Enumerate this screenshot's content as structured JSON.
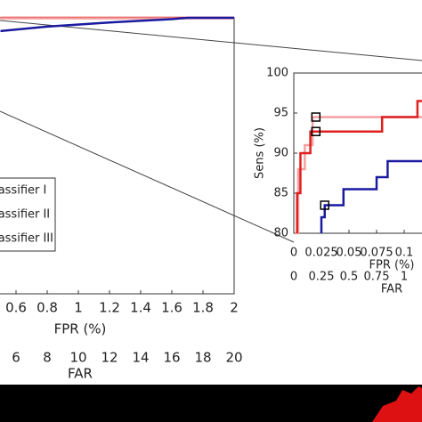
{
  "chart_data": [
    {
      "type": "line",
      "xlabel": "FPR (%)",
      "x2label": "FAR",
      "xlim": [
        0,
        2
      ],
      "xticks": [
        0.6,
        0.8,
        1,
        1.2,
        1.4,
        1.6,
        1.8,
        2
      ],
      "x2lim": [
        0,
        20
      ],
      "x2ticks": [
        6,
        8,
        10,
        12,
        14,
        16,
        18,
        20
      ],
      "ylim": [
        0,
        100
      ],
      "series": [
        {
          "name": "Classifier I",
          "color": "#e02020",
          "x": [
            0.5,
            2
          ],
          "values": [
            100,
            100
          ]
        },
        {
          "name": "Classifier II",
          "color": "#f4a0a0",
          "x": [
            0.5,
            2
          ],
          "values": [
            99.8,
            99.8
          ]
        },
        {
          "name": "Classifier III",
          "color": "#1a1aa0",
          "x": [
            0.5,
            0.8,
            1.2,
            1.6,
            1.7,
            2
          ],
          "values": [
            95.2,
            96.8,
            98.3,
            99.5,
            100,
            100
          ]
        }
      ]
    },
    {
      "type": "line",
      "ylabel": "Sens (%)",
      "xlabel": "FPR (%)",
      "x2label": "FAR",
      "xlim": [
        0,
        0.14
      ],
      "xticks": [
        0,
        0.025,
        0.05,
        0.075,
        0.1
      ],
      "x2lim": [
        0,
        1.4
      ],
      "x2ticks": [
        0,
        0.25,
        0.5,
        0.75,
        1
      ],
      "ylim": [
        80,
        100
      ],
      "yticks": [
        80,
        85,
        90,
        95,
        100
      ],
      "series": [
        {
          "color": "#f4a0a0",
          "x": [
            0.001,
            0.004,
            0.004,
            0.01,
            0.01,
            0.017,
            0.017,
            0.14
          ],
          "values": [
            80,
            80,
            88,
            88,
            91,
            91,
            94.5,
            94.5
          ]
        },
        {
          "color": "#e02020",
          "x": [
            0.003,
            0.003,
            0.006,
            0.006,
            0.015,
            0.015,
            0.08,
            0.08,
            0.112,
            0.112,
            0.12,
            0.12,
            0.14
          ],
          "values": [
            80,
            85,
            85,
            90,
            90,
            92.7,
            92.7,
            94.5,
            94.5,
            96.5,
            96.5,
            98,
            98
          ]
        },
        {
          "color": "#1a1aa0",
          "x": [
            0.025,
            0.025,
            0.028,
            0.028,
            0.045,
            0.045,
            0.075,
            0.075,
            0.085,
            0.085,
            0.1,
            0.1,
            0.14
          ],
          "values": [
            80,
            82,
            82,
            83.5,
            83.5,
            85.5,
            85.5,
            87,
            87,
            89,
            89,
            89,
            89
          ]
        }
      ],
      "highlights": {
        "x": [
          0.02,
          0.02,
          0.028
        ],
        "values": [
          94.5,
          92.7,
          83.5
        ]
      }
    }
  ]
}
